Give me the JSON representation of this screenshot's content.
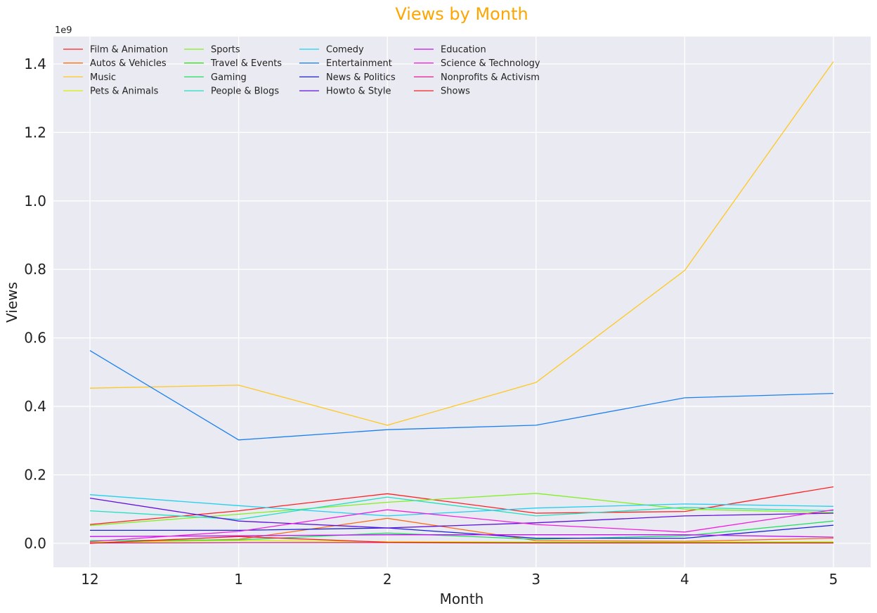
{
  "chart_data": {
    "type": "line",
    "title": "Views by Month",
    "title_color": "#ffa500",
    "xlabel": "Month",
    "ylabel": "Views",
    "y_offset_label": "1e9",
    "y_scale": 1000000000,
    "ylim": [
      -70000000,
      1480000000
    ],
    "yticks": [
      0,
      200000000,
      400000000,
      600000000,
      800000000,
      1000000000,
      1200000000,
      1400000000
    ],
    "ytick_labels": [
      "0.0",
      "0.2",
      "0.4",
      "0.6",
      "0.8",
      "1.0",
      "1.2",
      "1.4"
    ],
    "categories": [
      "12",
      "1",
      "2",
      "3",
      "4",
      "5"
    ],
    "grid": true,
    "background": "#eaeaf2",
    "legend_position": "top-left",
    "series": [
      {
        "name": "Film & Animation",
        "color": "#ff2020",
        "values": [
          55000000,
          95000000,
          145000000,
          88000000,
          93000000,
          165000000
        ]
      },
      {
        "name": "Autos & Vehicles",
        "color": "#ff6a10",
        "values": [
          2000000,
          12000000,
          73000000,
          8000000,
          6000000,
          15000000
        ]
      },
      {
        "name": "Music",
        "color": "#ffc820",
        "values": [
          453000000,
          462000000,
          345000000,
          470000000,
          797000000,
          1407000000
        ]
      },
      {
        "name": "Pets & Animals",
        "color": "#d8f000",
        "values": [
          3000000,
          8000000,
          5000000,
          4000000,
          4000000,
          5000000
        ]
      },
      {
        "name": "Sports",
        "color": "#80f020",
        "values": [
          52000000,
          85000000,
          120000000,
          146000000,
          100000000,
          90000000
        ]
      },
      {
        "name": "Travel & Events",
        "color": "#30e020",
        "values": [
          1000000,
          2000000,
          2000000,
          2000000,
          2000000,
          2000000
        ]
      },
      {
        "name": "Gaming",
        "color": "#20e060",
        "values": [
          8000000,
          10000000,
          30000000,
          12000000,
          22000000,
          65000000
        ]
      },
      {
        "name": "People & Blogs",
        "color": "#20e0c0",
        "values": [
          95000000,
          70000000,
          135000000,
          80000000,
          105000000,
          95000000
        ]
      },
      {
        "name": "Comedy",
        "color": "#20d0f0",
        "values": [
          142000000,
          110000000,
          80000000,
          103000000,
          115000000,
          108000000
        ]
      },
      {
        "name": "Entertainment",
        "color": "#1a80f0",
        "values": [
          563000000,
          302000000,
          332000000,
          345000000,
          425000000,
          438000000
        ]
      },
      {
        "name": "News & Politics",
        "color": "#1a20e0",
        "values": [
          38000000,
          38000000,
          45000000,
          15000000,
          15000000,
          53000000
        ]
      },
      {
        "name": "Howto & Style",
        "color": "#6010e0",
        "values": [
          132000000,
          65000000,
          45000000,
          60000000,
          80000000,
          88000000
        ]
      },
      {
        "name": "Education",
        "color": "#c010f0",
        "values": [
          20000000,
          22000000,
          25000000,
          25000000,
          25000000,
          18000000
        ]
      },
      {
        "name": "Science & Technology",
        "color": "#f020e0",
        "values": [
          5000000,
          35000000,
          98000000,
          55000000,
          33000000,
          98000000
        ]
      },
      {
        "name": "Nonprofits & Activism",
        "color": "#f01890",
        "values": [
          1000000,
          2000000,
          2000000,
          1000000,
          1000000,
          1000000
        ]
      },
      {
        "name": "Shows",
        "color": "#f02020",
        "values": [
          0,
          20000000,
          3000000,
          1000000,
          1000000,
          1000000
        ]
      }
    ]
  }
}
